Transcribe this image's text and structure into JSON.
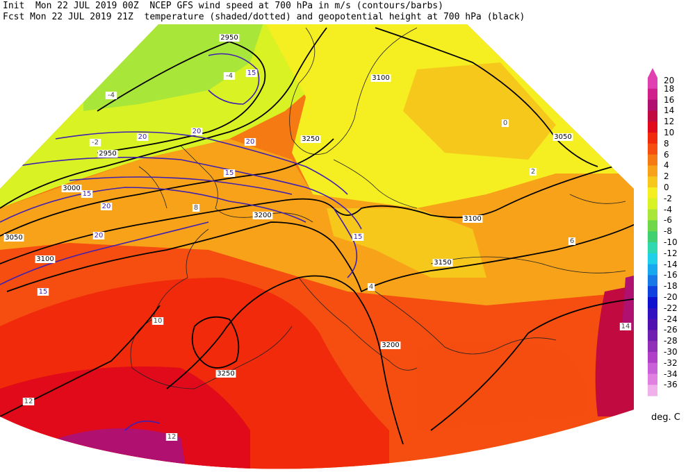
{
  "header": {
    "line1": "Init  Mon 22 JUL 2019 00Z  NCEP GFS wind speed at 700 hPa in m/s (contours/barbs)",
    "line2": "Fcst Mon 22 JUL 2019 21Z  temperature (shaded/dotted) and geopotential height at 700 hPa (black)"
  },
  "colorbar": {
    "unit": "deg. C",
    "levels": [
      {
        "label": "20",
        "color": "#e040b0"
      },
      {
        "label": "18",
        "color": "#d0208c"
      },
      {
        "label": "16",
        "color": "#b01070"
      },
      {
        "label": "14",
        "color": "#c00a40"
      },
      {
        "label": "12",
        "color": "#e00a1a"
      },
      {
        "label": "10",
        "color": "#f02a0a"
      },
      {
        "label": "8",
        "color": "#f54e10"
      },
      {
        "label": "6",
        "color": "#f57a14"
      },
      {
        "label": "4",
        "color": "#f7a218"
      },
      {
        "label": "2",
        "color": "#f7c81c"
      },
      {
        "label": "0",
        "color": "#f5ee20"
      },
      {
        "label": "-2",
        "color": "#d8f224"
      },
      {
        "label": "-4",
        "color": "#a8e63a"
      },
      {
        "label": "-6",
        "color": "#70d848"
      },
      {
        "label": "-8",
        "color": "#40d070"
      },
      {
        "label": "-10",
        "color": "#30d8b0"
      },
      {
        "label": "-12",
        "color": "#20d0e8"
      },
      {
        "label": "-14",
        "color": "#18a8f0"
      },
      {
        "label": "-16",
        "color": "#1878e8"
      },
      {
        "label": "-18",
        "color": "#1040e0"
      },
      {
        "label": "-20",
        "color": "#1010d0"
      },
      {
        "label": "-22",
        "color": "#3010c0"
      },
      {
        "label": "-24",
        "color": "#5010b0"
      },
      {
        "label": "-26",
        "color": "#7020b0"
      },
      {
        "label": "-28",
        "color": "#9030b8"
      },
      {
        "label": "-30",
        "color": "#b040c8"
      },
      {
        "label": "-32",
        "color": "#c860d8"
      },
      {
        "label": "-34",
        "color": "#e080e0"
      },
      {
        "label": "-36",
        "color": "#f0b0ec"
      }
    ]
  },
  "height_labels": [
    {
      "text": "2950"
    },
    {
      "text": "2950"
    },
    {
      "text": "3000"
    },
    {
      "text": "3050"
    },
    {
      "text": "3050"
    },
    {
      "text": "3100"
    },
    {
      "text": "3100"
    },
    {
      "text": "3100"
    },
    {
      "text": "3150"
    },
    {
      "text": "3200"
    },
    {
      "text": "3200"
    },
    {
      "text": "3250"
    },
    {
      "text": "3250"
    }
  ],
  "wind_labels": [
    {
      "text": "15"
    },
    {
      "text": "20"
    },
    {
      "text": "20"
    },
    {
      "text": "15"
    },
    {
      "text": "20"
    },
    {
      "text": "15"
    },
    {
      "text": "20"
    },
    {
      "text": "15"
    },
    {
      "text": "15"
    },
    {
      "text": "20"
    }
  ],
  "temp_labels": [
    {
      "text": "-4"
    },
    {
      "text": "-4"
    },
    {
      "text": "-2"
    },
    {
      "text": "0"
    },
    {
      "text": "2"
    },
    {
      "text": "4"
    },
    {
      "text": "6"
    },
    {
      "text": "8"
    },
    {
      "text": "10"
    },
    {
      "text": "12"
    },
    {
      "text": "12"
    },
    {
      "text": "14"
    }
  ]
}
